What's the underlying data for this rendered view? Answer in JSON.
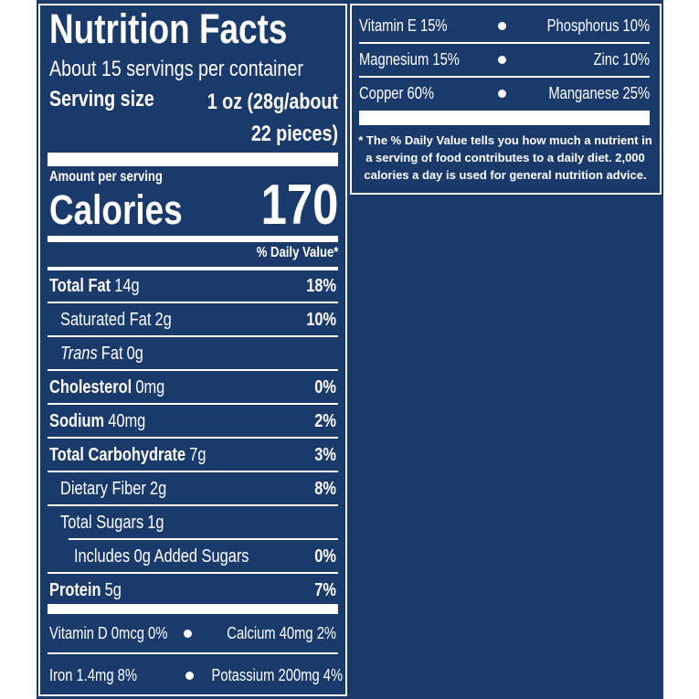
{
  "header": {
    "title": "Nutrition Facts",
    "servings": "About 15 servings per container",
    "serving_size_label": "Serving size",
    "serving_size_value": "1 oz (28g/about 22 pieces)"
  },
  "calories": {
    "amount_label": "Amount per serving",
    "label": "Calories",
    "value": 170
  },
  "daily_value_header": "% Daily Value*",
  "nutrients": [
    {
      "name": "Total Fat",
      "amount": "14g",
      "dv": "18%"
    },
    {
      "name": "Saturated Fat",
      "amount": "2g",
      "dv": "10%"
    },
    {
      "name_italic": "Trans",
      "name": "Fat",
      "amount": "0g"
    },
    {
      "name": "Cholesterol",
      "amount": "0mg",
      "dv": "0%"
    },
    {
      "name": "Sodium",
      "amount": "40mg",
      "dv": "2%"
    },
    {
      "name": "Total Carbohydrate",
      "amount": "7g",
      "dv": "3%"
    },
    {
      "name": "Dietary Fiber",
      "amount": "2g",
      "dv": "8%"
    },
    {
      "name": "Total Sugars",
      "amount": "1g"
    },
    {
      "name": "Includes 0g Added Sugars",
      "dv": "0%"
    },
    {
      "name": "Protein",
      "amount": "5g",
      "dv": "7%"
    }
  ],
  "micronutrients": [
    [
      "Vitamin D 0mcg 0%",
      "Calcium 40mg 2%"
    ],
    [
      "Iron 1.4mg 8%",
      "Potassium 200mg 4%"
    ]
  ],
  "right_micronutrients": [
    [
      "Vitamin E 15%",
      "Phosphorus 10%"
    ],
    [
      "Magnesium 15%",
      "Zinc 10%"
    ],
    [
      "Copper 60%",
      "Manganese 25%"
    ]
  ],
  "footnote": "* The % Daily Value tells you how much a nutrient in a serving of food contributes to a daily diet. 2,000 calories a day is used for general nutrition advice."
}
